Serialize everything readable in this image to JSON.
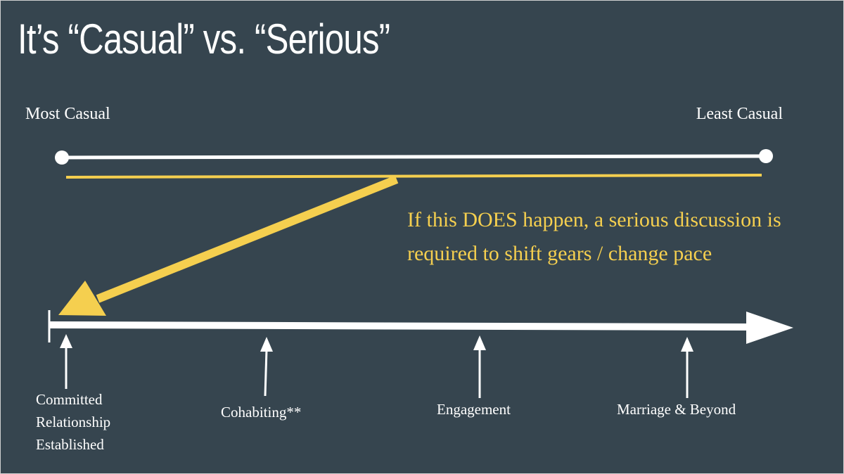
{
  "slide": {
    "title": "It’s “Casual” vs. “Serious”",
    "scale": {
      "left_label": "Most Casual",
      "right_label": "Least Casual"
    },
    "callout": "If this DOES happen, a serious discussion is required to shift gears / change pace",
    "milestones": [
      {
        "label": "Committed Relationship Established"
      },
      {
        "label": "Cohabiting**"
      },
      {
        "label": "Engagement"
      },
      {
        "label": "Marriage & Beyond"
      }
    ],
    "colors": {
      "background": "#36454f",
      "line": "#ffffff",
      "accent": "#f5cf4f"
    }
  }
}
